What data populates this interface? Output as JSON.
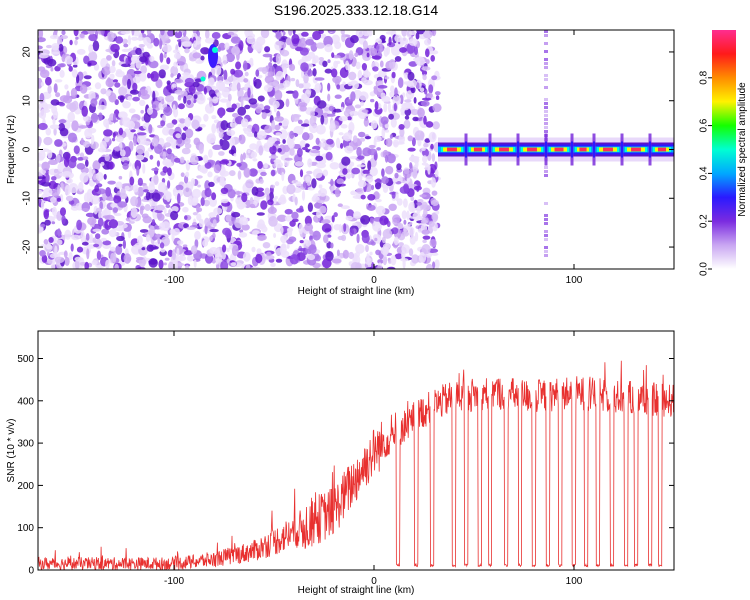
{
  "title": "S196.2025.333.12.18.G14",
  "chart_data": [
    {
      "type": "heatmap",
      "title": "S196.2025.333.12.18.G14",
      "xlabel": "Height of straight line (km)",
      "ylabel": "Frequency (Hz)",
      "xlim": [
        -168,
        150
      ],
      "ylim": [
        -24.5,
        24.5
      ],
      "xticks": [
        -100,
        0,
        100
      ],
      "xtick_labels": [
        "-100",
        "0",
        "100"
      ],
      "yticks": [
        -20,
        -10,
        0,
        10,
        20
      ],
      "ytick_labels": [
        "-20",
        "-10",
        "0",
        "10",
        "20"
      ],
      "noise_region_x": [
        -168,
        32
      ],
      "signal_band_x": [
        32,
        150
      ],
      "signal_band_freq": 0,
      "signal_gaps_x": [
        46,
        58,
        72,
        86,
        99,
        110,
        124,
        138
      ],
      "spurious_line_x": 86,
      "colorbar": {
        "label": "Normalized spectral amplitude",
        "range": [
          0,
          1
        ],
        "ticks": [
          0.0,
          0.2,
          0.4,
          0.6,
          0.8
        ],
        "tick_labels": [
          "0.0",
          "0.2",
          "0.4",
          "0.6",
          "0.8"
        ],
        "colors": [
          "#ffffff",
          "#c9a6f2",
          "#7b2be0",
          "#2a1aff",
          "#00a8ff",
          "#00ffd2",
          "#14ff00",
          "#fff200",
          "#ff8c00",
          "#ff1a1a",
          "#ff2d8f"
        ]
      }
    },
    {
      "type": "line",
      "xlabel": "Height of straight line (km)",
      "ylabel": "SNR (10 * v/v)",
      "xlim": [
        -168,
        150
      ],
      "ylim": [
        0,
        565
      ],
      "xticks": [
        -100,
        0,
        100
      ],
      "xtick_labels": [
        "-100",
        "0",
        "100"
      ],
      "yticks": [
        0,
        100,
        200,
        300,
        400,
        500
      ],
      "ytick_labels": [
        "0",
        "100",
        "200",
        "300",
        "400",
        "500"
      ],
      "series": [
        {
          "name": "SNR",
          "color": "#e8302f",
          "anchors_x": [
            -168,
            -100,
            -80,
            -60,
            -40,
            -20,
            -10,
            0,
            10,
            15,
            20,
            30,
            40,
            60,
            80,
            100,
            120,
            150
          ],
          "anchors_y": [
            15,
            15,
            25,
            45,
            90,
            140,
            210,
            280,
            320,
            340,
            360,
            390,
            410,
            420,
            410,
            420,
            410,
            400
          ],
          "dropout_x": [
            12,
            21,
            29,
            40,
            46,
            53,
            58,
            66,
            73,
            80,
            87,
            93,
            100,
            106,
            112,
            119,
            126,
            131,
            138,
            143
          ],
          "dropout_value": 8
        }
      ]
    }
  ]
}
